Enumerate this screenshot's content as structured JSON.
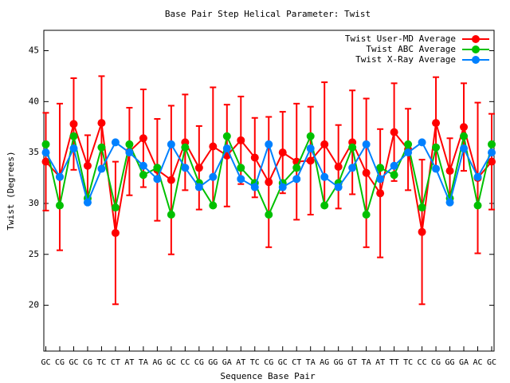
{
  "chart_data": {
    "type": "line",
    "title": "Base Pair Step Helical Parameter: Twist",
    "x_label": "Sequence Base Pair",
    "y_label": "Twist (Degrees)",
    "categories": [
      "GC",
      "CG",
      "GC",
      "CG",
      "TC",
      "CT",
      "AT",
      "TA",
      "AG",
      "GC",
      "CC",
      "CG",
      "GG",
      "GA",
      "AT",
      "TC",
      "CG",
      "GC",
      "CT",
      "TA",
      "AG",
      "GG",
      "GT",
      "TA",
      "AT",
      "TT",
      "TC",
      "CC",
      "CG",
      "GG",
      "GA",
      "AC",
      "GC"
    ],
    "ylim": [
      15.5,
      47
    ],
    "yticks": [
      20,
      25,
      30,
      35,
      40,
      45
    ],
    "legend": "top-right",
    "series": [
      {
        "name": "Twist User-MD Average",
        "color": "#ff0000",
        "values": [
          34.1,
          32.6,
          37.8,
          33.7,
          37.9,
          27.1,
          35.1,
          36.4,
          33.3,
          32.3,
          36.0,
          33.5,
          35.6,
          34.7,
          36.2,
          34.5,
          32.1,
          35.0,
          34.1,
          34.2,
          35.8,
          33.6,
          36.0,
          33.0,
          31.0,
          37.0,
          35.3,
          27.2,
          37.9,
          33.2,
          37.5,
          32.5,
          34.1
        ],
        "errors": [
          4.8,
          7.2,
          4.5,
          3.0,
          4.6,
          7.0,
          4.3,
          4.8,
          5.0,
          7.3,
          4.7,
          4.1,
          5.8,
          5.0,
          4.3,
          3.9,
          6.4,
          4.0,
          5.7,
          5.3,
          6.1,
          4.1,
          5.1,
          7.3,
          6.3,
          4.8,
          4.0,
          7.1,
          4.5,
          3.2,
          4.3,
          7.4,
          4.7
        ]
      },
      {
        "name": "Twist ABC Average",
        "color": "#00c000",
        "values": [
          35.8,
          29.8,
          36.6,
          30.5,
          35.5,
          29.6,
          35.8,
          32.8,
          33.5,
          28.9,
          35.5,
          32.0,
          29.8,
          36.6,
          33.5,
          32.0,
          28.9,
          32.0,
          33.5,
          36.6,
          29.8,
          32.0,
          35.5,
          28.9,
          33.5,
          32.8,
          35.8,
          29.6,
          35.5,
          30.5,
          36.6,
          29.8,
          35.8
        ]
      },
      {
        "name": "Twist X-Ray Average",
        "color": "#0080ff",
        "values": [
          35.0,
          32.6,
          35.4,
          30.1,
          33.4,
          36.0,
          35.0,
          33.7,
          32.4,
          35.8,
          33.5,
          31.6,
          32.6,
          35.4,
          32.4,
          31.6,
          35.8,
          31.6,
          32.4,
          35.4,
          32.6,
          31.6,
          33.5,
          35.8,
          32.4,
          33.7,
          35.0,
          36.0,
          33.4,
          30.1,
          35.4,
          32.6,
          35.0
        ]
      }
    ]
  }
}
